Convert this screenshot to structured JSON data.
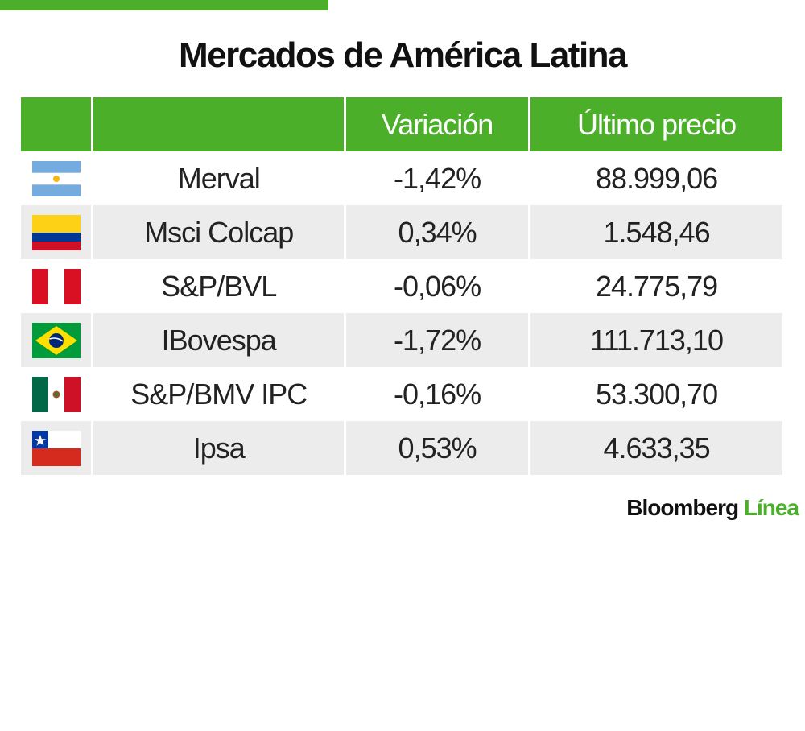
{
  "title": "Mercados de América Latina",
  "header": {
    "col_index": "",
    "col_variation": "Variación",
    "col_price": "Último precio"
  },
  "chart_data": {
    "type": "table",
    "columns": [
      "",
      "",
      "Variación",
      "Último precio"
    ],
    "rows": [
      {
        "flag": "argentina-flag-icon",
        "index": "Merval",
        "variation": "-1,42%",
        "price": "88.999,06"
      },
      {
        "flag": "colombia-flag-icon",
        "index": "Msci Colcap",
        "variation": "0,34%",
        "price": "1.548,46"
      },
      {
        "flag": "peru-flag-icon",
        "index": "S&P/BVL",
        "variation": "-0,06%",
        "price": "24.775,79"
      },
      {
        "flag": "brazil-flag-icon",
        "index": "IBovespa",
        "variation": "-1,72%",
        "price": "111.713,10"
      },
      {
        "flag": "mexico-flag-icon",
        "index": "S&P/BMV IPC",
        "variation": "-0,16%",
        "price": "53.300,70"
      },
      {
        "flag": "chile-flag-icon",
        "index": "Ipsa",
        "variation": "0,53%",
        "price": "4.633,35"
      }
    ]
  },
  "logo": {
    "brand": "Bloomberg",
    "suffix": "Línea"
  },
  "colors": {
    "accent_green": "#4caf2a",
    "row_alt": "#ececec"
  }
}
